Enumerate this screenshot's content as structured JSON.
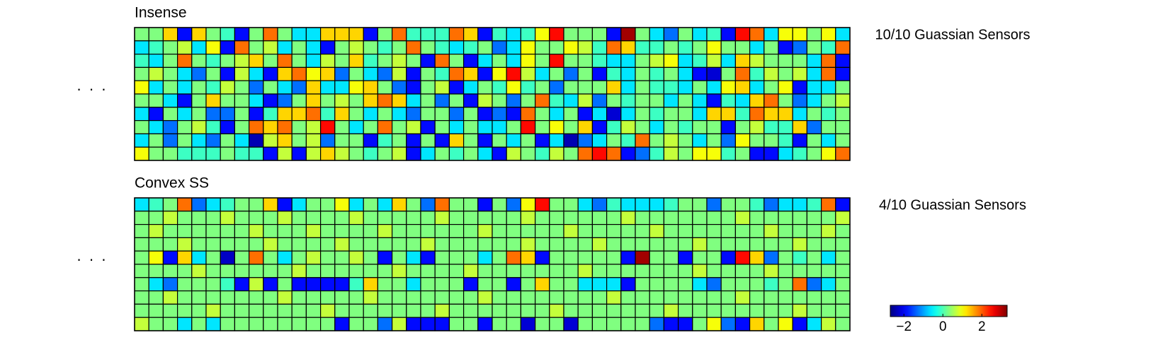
{
  "chart_data": [
    {
      "type": "heatmap",
      "title": "Insense",
      "annotation": "10/10 Guassian Sensors",
      "row_ellipsis": "· · ·",
      "colormap": "jet",
      "clim": [
        -2.7,
        3.3
      ],
      "values": [
        [
          0.3,
          0.3,
          1.3,
          -1.9,
          1.3,
          0.3,
          -0.1,
          -1.9,
          0.3,
          1.9,
          0.3,
          -0.6,
          -0.6,
          1.3,
          1.3,
          1.3,
          -1.9,
          0.3,
          1.9,
          -0.1,
          -0.1,
          -0.1,
          1.9,
          1.3,
          -1.9,
          -0.1,
          -0.6,
          -0.1,
          1.0,
          2.5,
          0.3,
          0.3,
          0.3,
          -1.9,
          3.1,
          0.3,
          -0.6,
          -1.3,
          0.3,
          -0.6,
          -0.1,
          -1.9,
          2.5,
          1.9,
          -0.6,
          1.0,
          1.0,
          0.3,
          1.0,
          -0.6
        ],
        [
          -0.6,
          -0.1,
          0.3,
          0.7,
          -0.6,
          1.0,
          -1.9,
          1.9,
          0.3,
          0.7,
          -0.6,
          0.3,
          -0.6,
          -1.9,
          0.3,
          0.7,
          0.3,
          -0.1,
          0.3,
          1.9,
          0.3,
          -0.1,
          -0.6,
          -0.1,
          0.3,
          -1.3,
          -0.6,
          1.0,
          0.3,
          0.3,
          1.0,
          0.7,
          -0.1,
          1.9,
          1.3,
          -0.1,
          -0.1,
          0.3,
          -0.1,
          0.3,
          1.0,
          0.3,
          0.3,
          -0.6,
          0.3,
          -1.9,
          -1.3,
          0.3,
          -0.1,
          1.9
        ],
        [
          -0.1,
          -0.6,
          0.3,
          1.9,
          0.3,
          -0.1,
          0.3,
          0.7,
          1.3,
          0.3,
          1.9,
          0.3,
          -0.6,
          0.7,
          0.3,
          1.3,
          -0.1,
          0.3,
          0.7,
          0.3,
          -1.9,
          1.9,
          0.3,
          -1.9,
          -0.6,
          0.3,
          -0.6,
          1.0,
          0.3,
          2.5,
          0.3,
          0.3,
          -0.1,
          -0.6,
          -0.6,
          0.3,
          0.7,
          1.0,
          -0.6,
          -0.1,
          0.7,
          -0.6,
          1.3,
          0.7,
          0.3,
          0.3,
          0.3,
          -0.6,
          1.9,
          -1.9
        ],
        [
          0.3,
          0.7,
          0.3,
          -0.6,
          -1.3,
          0.3,
          -1.9,
          0.7,
          -0.6,
          -1.9,
          1.3,
          1.9,
          1.0,
          1.3,
          -1.3,
          0.3,
          -0.6,
          -1.3,
          0.7,
          -1.9,
          0.3,
          -0.1,
          1.9,
          1.3,
          -1.9,
          1.0,
          2.5,
          0.7,
          -0.6,
          0.3,
          -1.3,
          0.3,
          -1.9,
          -0.1,
          -0.6,
          0.3,
          -0.1,
          0.3,
          -0.6,
          -1.9,
          -2.2,
          0.3,
          1.9,
          -0.1,
          0.7,
          0.3,
          0.7,
          -0.6,
          1.9,
          -1.9
        ],
        [
          1.0,
          -0.6,
          0.3,
          -0.6,
          0.3,
          -0.1,
          0.7,
          0.3,
          -1.3,
          0.3,
          -0.6,
          -1.3,
          1.3,
          -0.6,
          -0.6,
          1.0,
          1.3,
          0.3,
          -1.3,
          -1.9,
          0.3,
          0.7,
          -1.9,
          -0.6,
          0.3,
          -0.1,
          1.0,
          -0.1,
          0.3,
          -1.3,
          0.3,
          0.3,
          0.3,
          1.3,
          -0.6,
          0.3,
          -0.1,
          -0.1,
          -0.6,
          0.3,
          -0.6,
          1.0,
          1.3,
          -0.6,
          0.3,
          1.0,
          -1.9,
          -0.6,
          -0.6,
          0.3
        ],
        [
          0.3,
          0.3,
          -0.6,
          -1.9,
          0.3,
          1.3,
          0.3,
          0.3,
          -0.6,
          -1.9,
          -1.3,
          0.3,
          1.3,
          0.3,
          0.7,
          0.3,
          1.3,
          1.9,
          1.3,
          -0.6,
          0.3,
          -1.3,
          0.3,
          -1.9,
          0.7,
          0.3,
          -1.3,
          0.3,
          1.9,
          -0.1,
          -0.6,
          0.7,
          -1.3,
          0.3,
          -0.1,
          0.3,
          0.3,
          -0.6,
          0.3,
          -0.6,
          -1.9,
          -0.1,
          -0.6,
          1.3,
          1.9,
          0.3,
          -1.3,
          -0.6,
          0.3,
          0.7
        ],
        [
          -0.6,
          -1.9,
          0.3,
          -0.6,
          0.3,
          -1.3,
          -1.3,
          0.3,
          -1.9,
          -0.1,
          1.3,
          1.3,
          1.9,
          -0.1,
          1.3,
          0.3,
          -0.6,
          0.3,
          -0.6,
          -1.3,
          0.3,
          0.3,
          -1.3,
          0.3,
          -1.9,
          -1.3,
          -1.9,
          1.9,
          0.3,
          -0.6,
          0.3,
          -1.9,
          -0.6,
          -2.2,
          -0.6,
          0.3,
          -0.1,
          0.3,
          0.3,
          -0.6,
          1.3,
          1.3,
          -0.1,
          1.9,
          1.3,
          1.3,
          -0.6,
          0.3,
          -0.1,
          0.3
        ],
        [
          0.3,
          -0.6,
          -1.3,
          0.3,
          0.7,
          -0.1,
          -1.9,
          0.3,
          1.9,
          1.3,
          1.9,
          0.3,
          0.7,
          2.5,
          0.3,
          -0.6,
          0.3,
          1.9,
          0.3,
          0.7,
          -1.9,
          0.3,
          -0.6,
          0.3,
          -0.6,
          -0.6,
          0.3,
          2.5,
          0.3,
          1.0,
          0.3,
          1.3,
          -1.9,
          -0.1,
          0.7,
          0.3,
          -0.6,
          0.3,
          -0.1,
          0.3,
          0.3,
          -1.9,
          0.3,
          0.7,
          -0.1,
          -0.1,
          1.3,
          -1.3,
          0.3,
          0.3
        ],
        [
          -0.6,
          0.3,
          -1.3,
          0.3,
          -0.6,
          -1.3,
          0.3,
          -0.6,
          -2.4,
          0.7,
          1.3,
          0.3,
          0.7,
          -1.3,
          0.3,
          0.3,
          -1.9,
          -0.1,
          0.3,
          -1.9,
          0.3,
          -1.9,
          1.3,
          0.3,
          -1.9,
          0.3,
          -0.6,
          0.3,
          -1.9,
          -0.6,
          -2.4,
          -1.3,
          -0.6,
          0.3,
          -0.1,
          1.9,
          0.3,
          0.7,
          0.3,
          -0.6,
          0.3,
          -1.3,
          1.0,
          0.3,
          0.3,
          -0.1,
          -1.9,
          0.3,
          -0.6,
          0.3
        ],
        [
          1.0,
          0.3,
          0.3,
          -0.1,
          -0.1,
          -0.1,
          0.3,
          -0.1,
          -0.1,
          -1.9,
          0.7,
          -1.9,
          0.7,
          1.3,
          0.7,
          0.3,
          -0.1,
          0.3,
          0.7,
          -1.9,
          -0.6,
          0.3,
          -0.1,
          0.3,
          -0.6,
          -1.9,
          0.7,
          0.3,
          -0.1,
          0.7,
          0.3,
          1.9,
          2.5,
          1.9,
          -1.9,
          -1.3,
          -0.1,
          0.7,
          0.3,
          1.0,
          1.0,
          -0.1,
          0.3,
          -1.9,
          -1.9,
          -0.6,
          -0.1,
          0.3,
          1.0,
          1.9
        ]
      ]
    },
    {
      "type": "heatmap",
      "title": "Convex SS",
      "annotation": "4/10 Guassian Sensors",
      "row_ellipsis": "· · ·",
      "colormap": "jet",
      "clim": [
        -2.7,
        3.3
      ],
      "values": [
        [
          -0.6,
          -0.1,
          0.3,
          1.9,
          -1.3,
          -0.6,
          -0.1,
          0.3,
          0.3,
          1.3,
          -1.9,
          -0.6,
          0.3,
          0.3,
          1.0,
          -0.6,
          0.3,
          -0.6,
          1.3,
          0.3,
          -1.3,
          1.9,
          0.3,
          0.3,
          -1.9,
          0.3,
          -1.3,
          1.0,
          2.5,
          0.3,
          0.3,
          -0.6,
          -1.3,
          -0.1,
          -0.6,
          -0.6,
          -0.6,
          -0.1,
          0.3,
          0.3,
          -1.3,
          0.3,
          0.3,
          -0.1,
          -1.3,
          -0.6,
          -0.6,
          -0.1,
          1.9,
          -1.9
        ],
        [
          0.3,
          0.3,
          0.7,
          0.3,
          0.3,
          0.3,
          0.7,
          0.3,
          0.3,
          0.3,
          0.7,
          0.3,
          0.3,
          0.3,
          0.3,
          0.7,
          0.3,
          0.3,
          0.3,
          0.3,
          0.3,
          0.7,
          0.3,
          0.3,
          0.3,
          0.3,
          0.3,
          0.7,
          0.3,
          0.3,
          0.3,
          0.3,
          0.3,
          0.3,
          0.7,
          0.3,
          0.3,
          0.3,
          0.3,
          0.3,
          0.3,
          0.3,
          0.7,
          0.3,
          0.3,
          0.3,
          0.3,
          0.3,
          0.3,
          0.7
        ],
        [
          0.3,
          0.7,
          0.3,
          0.3,
          0.3,
          0.3,
          0.3,
          0.3,
          0.7,
          0.3,
          0.3,
          0.3,
          0.7,
          0.3,
          0.3,
          0.3,
          0.3,
          0.7,
          0.3,
          0.3,
          0.3,
          0.3,
          0.3,
          0.3,
          0.7,
          0.3,
          0.3,
          0.3,
          0.3,
          0.3,
          0.7,
          0.3,
          0.3,
          0.3,
          0.3,
          0.3,
          0.7,
          0.3,
          0.3,
          0.3,
          0.3,
          0.3,
          0.3,
          0.3,
          0.7,
          0.3,
          0.3,
          0.3,
          0.7,
          0.3
        ],
        [
          0.3,
          0.3,
          0.3,
          0.7,
          0.3,
          0.3,
          0.3,
          0.3,
          0.3,
          0.7,
          0.3,
          0.3,
          0.3,
          0.3,
          0.7,
          0.3,
          0.3,
          0.3,
          0.3,
          0.3,
          0.7,
          0.3,
          0.3,
          0.3,
          0.3,
          0.3,
          0.3,
          0.7,
          0.3,
          0.3,
          0.3,
          0.3,
          0.7,
          0.3,
          0.3,
          0.3,
          0.3,
          0.3,
          0.3,
          0.7,
          0.3,
          0.3,
          0.3,
          0.3,
          0.3,
          0.3,
          0.7,
          0.3,
          0.3,
          0.3
        ],
        [
          0.3,
          1.0,
          -1.9,
          1.3,
          -0.6,
          0.3,
          -2.3,
          0.3,
          1.9,
          0.3,
          -0.6,
          0.3,
          0.7,
          0.3,
          0.3,
          0.7,
          0.3,
          -1.9,
          0.3,
          -0.6,
          -1.9,
          0.3,
          0.3,
          0.3,
          -0.6,
          0.3,
          1.9,
          1.3,
          -1.9,
          0.3,
          0.3,
          0.3,
          0.3,
          0.3,
          -1.9,
          3.1,
          0.3,
          0.3,
          -1.9,
          0.3,
          0.3,
          -1.9,
          2.5,
          1.3,
          -1.3,
          0.3,
          -0.1,
          0.3,
          -0.6,
          0.3
        ],
        [
          0.3,
          0.3,
          0.3,
          0.3,
          0.7,
          0.3,
          0.3,
          0.3,
          0.3,
          0.3,
          0.3,
          0.7,
          0.3,
          0.3,
          0.3,
          0.3,
          0.3,
          0.3,
          0.7,
          0.3,
          0.3,
          0.3,
          0.3,
          0.7,
          0.3,
          0.3,
          0.3,
          0.3,
          0.3,
          0.3,
          0.3,
          0.7,
          0.3,
          0.3,
          0.3,
          0.3,
          0.3,
          0.3,
          0.3,
          0.7,
          0.3,
          0.3,
          0.3,
          0.3,
          0.7,
          0.3,
          0.3,
          0.3,
          0.3,
          0.3
        ],
        [
          0.3,
          -0.6,
          -1.3,
          0.3,
          0.3,
          0.3,
          -0.1,
          -1.9,
          0.7,
          -1.9,
          0.3,
          -1.9,
          -1.9,
          -1.9,
          -1.9,
          -0.1,
          1.3,
          0.3,
          0.3,
          -0.6,
          0.3,
          0.3,
          0.3,
          -1.9,
          0.3,
          0.3,
          -1.9,
          0.3,
          1.3,
          0.3,
          0.3,
          -0.6,
          -0.6,
          -0.6,
          -1.9,
          0.3,
          0.3,
          0.3,
          0.3,
          -0.6,
          -1.3,
          0.3,
          0.3,
          0.3,
          -0.1,
          0.3,
          1.9,
          -1.3,
          -0.6,
          0.3
        ],
        [
          0.3,
          0.3,
          0.7,
          0.3,
          0.3,
          0.3,
          0.3,
          0.3,
          0.3,
          0.3,
          0.7,
          0.3,
          0.3,
          0.3,
          0.3,
          0.3,
          0.7,
          0.3,
          0.3,
          0.3,
          0.3,
          0.3,
          0.3,
          0.3,
          0.7,
          0.3,
          0.3,
          0.3,
          0.3,
          0.3,
          0.3,
          0.3,
          0.3,
          0.7,
          0.3,
          0.3,
          0.3,
          0.3,
          0.3,
          0.3,
          0.3,
          0.3,
          0.7,
          0.3,
          0.3,
          0.3,
          0.3,
          0.3,
          0.3,
          0.3
        ],
        [
          0.3,
          0.3,
          0.3,
          0.3,
          0.3,
          0.7,
          0.3,
          0.3,
          0.3,
          0.3,
          0.3,
          0.3,
          0.3,
          0.7,
          0.3,
          0.3,
          0.3,
          0.3,
          0.3,
          0.3,
          0.3,
          0.7,
          0.3,
          0.3,
          0.3,
          0.3,
          0.3,
          0.3,
          0.3,
          0.7,
          0.3,
          0.3,
          0.3,
          0.3,
          0.3,
          0.3,
          0.3,
          0.7,
          0.3,
          0.3,
          0.3,
          0.3,
          0.3,
          0.3,
          0.3,
          0.3,
          0.7,
          0.3,
          0.3,
          0.3
        ],
        [
          0.7,
          0.3,
          0.3,
          -0.6,
          0.3,
          -0.6,
          0.3,
          0.3,
          0.3,
          0.3,
          0.3,
          0.3,
          0.3,
          0.3,
          -1.9,
          0.3,
          0.3,
          -1.3,
          0.7,
          -1.9,
          -1.9,
          -1.9,
          0.3,
          0.3,
          -1.9,
          0.3,
          0.3,
          -2.2,
          0.3,
          0.3,
          -2.2,
          0.3,
          0.3,
          0.3,
          0.3,
          0.3,
          -1.3,
          -1.9,
          -1.9,
          0.3,
          1.0,
          -1.3,
          -1.9,
          1.3,
          0.3,
          1.0,
          -1.9,
          -0.6,
          0.7,
          0.3
        ]
      ]
    },
    {
      "type": "colorbar",
      "colormap": "jet",
      "clim": [
        -2.7,
        3.3
      ],
      "ticks": [
        {
          "value": -2,
          "label": "−2"
        },
        0,
        2
      ]
    }
  ]
}
